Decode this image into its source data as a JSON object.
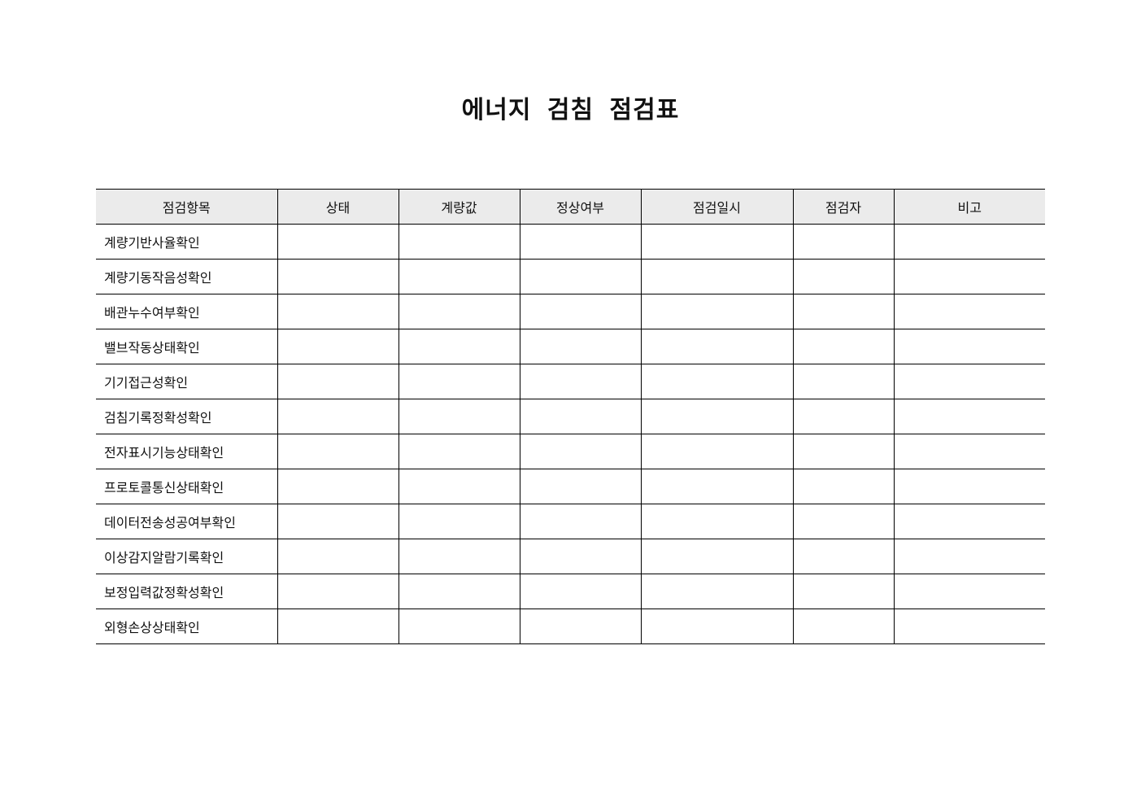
{
  "title": "에너지 검침 점검표",
  "table": {
    "headers": [
      "점검항목",
      "상태",
      "계량값",
      "정상여부",
      "점검일시",
      "점검자",
      "비고"
    ],
    "rows": [
      "계량기반사율확인",
      "계량기동작음성확인",
      "배관누수여부확인",
      "밸브작동상태확인",
      "기기접근성확인",
      "검침기록정확성확인",
      "전자표시기능상태확인",
      "프로토콜통신상태확인",
      "데이터전송성공여부확인",
      "이상감지알람기록확인",
      "보정입력값정확성확인",
      "외형손상상태확인"
    ],
    "header_bg": "#ebebeb"
  }
}
